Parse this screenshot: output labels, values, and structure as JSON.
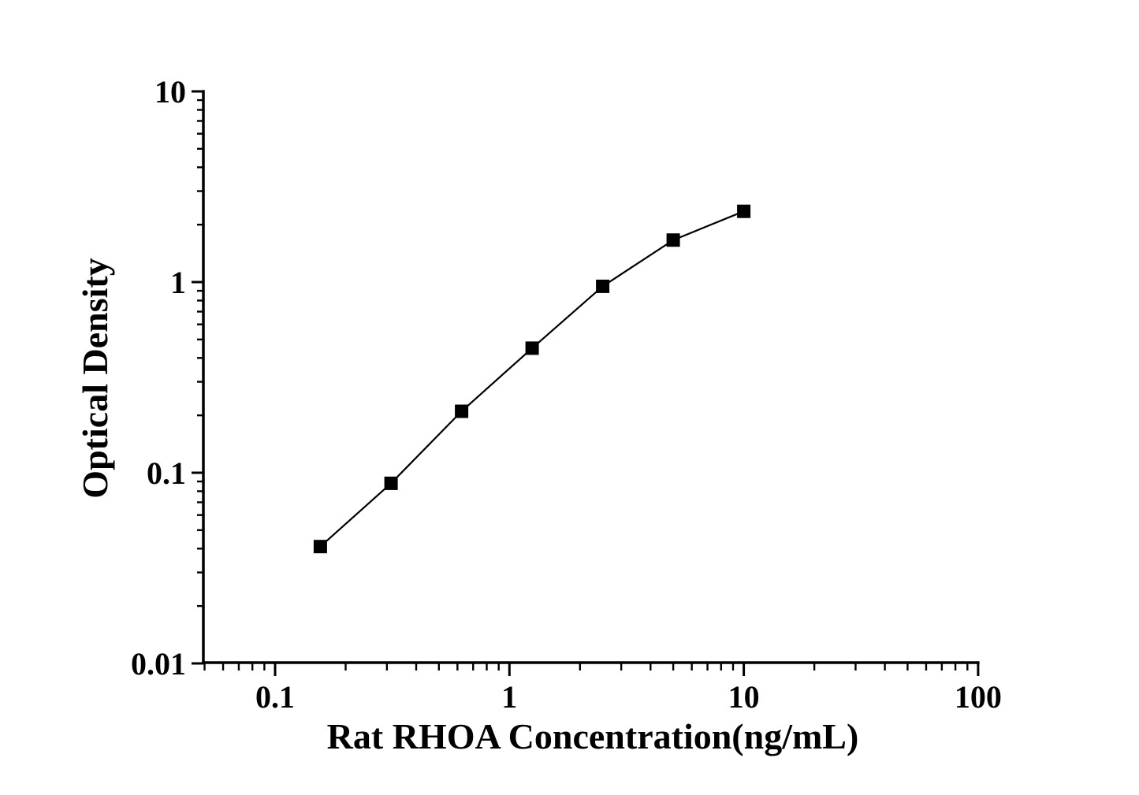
{
  "figure": {
    "background_color": "#ffffff",
    "ink_color": "#000000"
  },
  "chart_data": {
    "type": "line",
    "title": "",
    "xlabel": "Rat RHOA Concentration(ng/mL)",
    "ylabel": "Optical Density",
    "x_scale": "log",
    "y_scale": "log",
    "xlim": [
      0.05,
      100
    ],
    "ylim": [
      0.01,
      10
    ],
    "grid": false,
    "legend": "none",
    "marker_shape": "filled-square",
    "x_major_ticks": [
      0.1,
      1,
      10,
      100
    ],
    "x_major_tick_labels": [
      "0.1",
      "1",
      "10",
      "100"
    ],
    "y_major_ticks": [
      0.01,
      0.1,
      1,
      10
    ],
    "y_major_tick_labels": [
      "0.01",
      "0.1",
      "1",
      "10"
    ],
    "series": [
      {
        "x": [
          0.156,
          0.3125,
          0.625,
          1.25,
          2.5,
          5,
          10
        ],
        "y": [
          0.041,
          0.088,
          0.21,
          0.45,
          0.95,
          1.66,
          2.35
        ]
      }
    ]
  }
}
